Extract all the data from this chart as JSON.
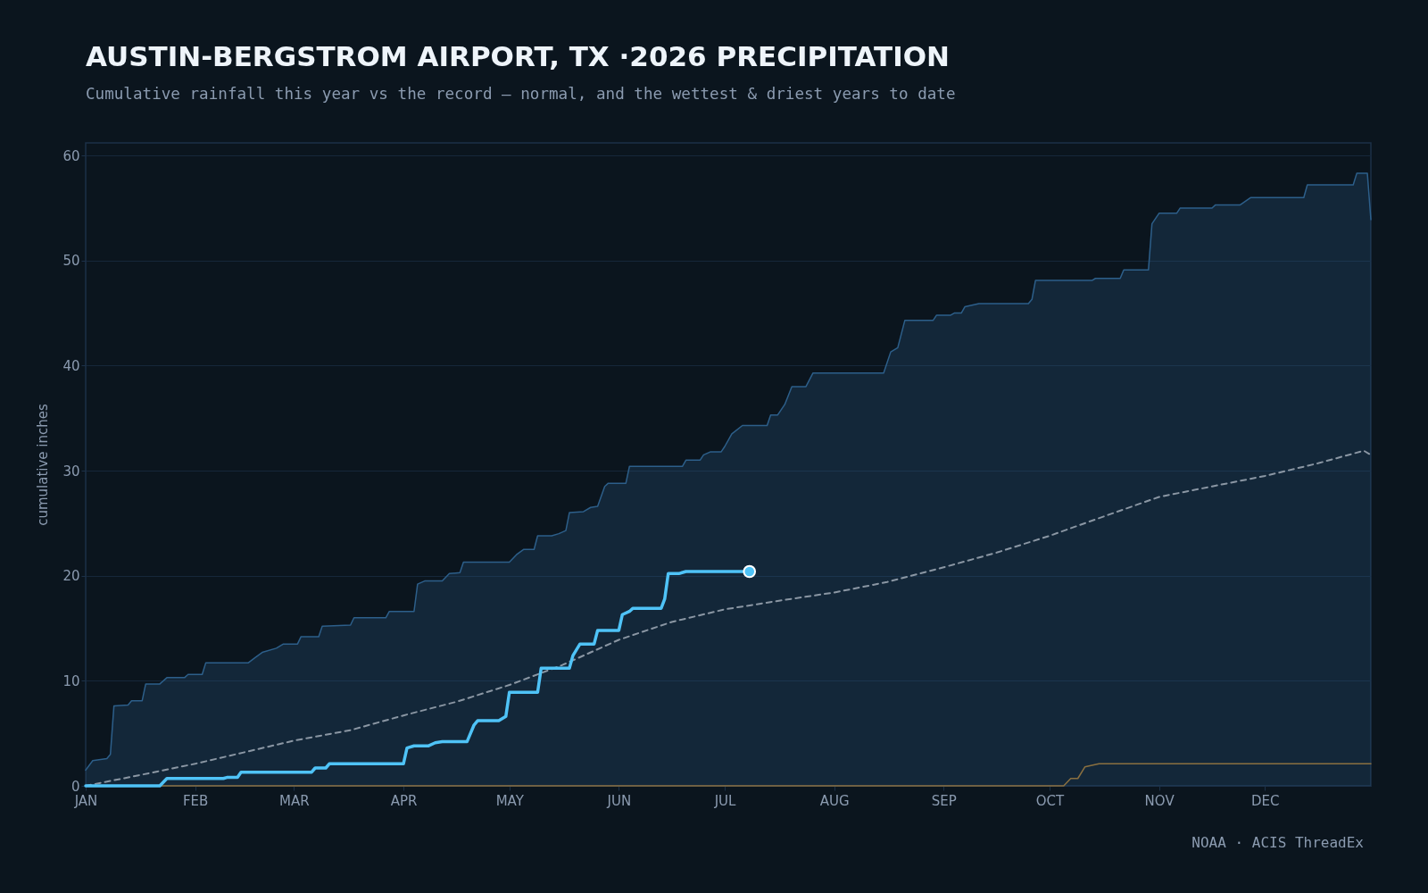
{
  "chart_data": {
    "type": "line",
    "title": "AUSTIN-BERGSTROM AIRPORT, TX ·2026 PRECIPITATION",
    "subtitle": "Cumulative rainfall this year vs the record — normal, and the wettest & driest years to date",
    "ylabel": "cumulative inches",
    "annotations": [
      "NOAA · ACIS ThreadEx"
    ],
    "xlim": [
      "--01-01",
      "--12-31"
    ],
    "xticks": [
      {
        "value": "--01-01",
        "label": "JAN"
      },
      {
        "value": "--02-01",
        "label": "FEB"
      },
      {
        "value": "--03-01",
        "label": "MAR"
      },
      {
        "value": "--04-01",
        "label": "APR"
      },
      {
        "value": "--05-01",
        "label": "MAY"
      },
      {
        "value": "--06-01",
        "label": "JUN"
      },
      {
        "value": "--07-01",
        "label": "JUL"
      },
      {
        "value": "--08-01",
        "label": "AUG"
      },
      {
        "value": "--09-01",
        "label": "SEP"
      },
      {
        "value": "--10-01",
        "label": "OCT"
      },
      {
        "value": "--11-01",
        "label": "NOV"
      },
      {
        "value": "--12-01",
        "label": "DEC"
      }
    ],
    "ylim": [
      0,
      61.2
    ],
    "yticks": [
      0,
      10,
      20,
      30,
      40,
      50,
      60
    ],
    "grid": "y",
    "series": [
      {
        "type": "area",
        "color": "#2d5f8a",
        "x": [
          "--01-01",
          "--01-03",
          "--01-07",
          "--01-08",
          "--01-09",
          "--01-13",
          "--01-14",
          "--01-17",
          "--01-18",
          "--01-22",
          "--01-24",
          "--01-29",
          "--01-30",
          "--02-03",
          "--02-04",
          "--02-16",
          "--02-18",
          "--02-20",
          "--02-24",
          "--02-26",
          "--03-02",
          "--03-03",
          "--03-08",
          "--03-09",
          "--03-17",
          "--03-18",
          "--03-27",
          "--03-28",
          "--04-04",
          "--04-05",
          "--04-07",
          "--04-12",
          "--04-14",
          "--04-17",
          "--04-18",
          "--05-01",
          "--05-03",
          "--05-05",
          "--05-08",
          "--05-09",
          "--05-13",
          "--05-15",
          "--05-17",
          "--05-18",
          "--05-22",
          "--05-24",
          "--05-26",
          "--05-28",
          "--05-29",
          "--06-03",
          "--06-04",
          "--06-19",
          "--06-20",
          "--06-24",
          "--06-25",
          "--06-27",
          "--06-30",
          "--07-01",
          "--07-03",
          "--07-06",
          "--07-13",
          "--07-14",
          "--07-16",
          "--07-18",
          "--07-20",
          "--07-24",
          "--07-26",
          "--08-15",
          "--08-17",
          "--08-19",
          "--08-21",
          "--08-29",
          "--08-30",
          "--09-03",
          "--09-04",
          "--09-06",
          "--09-07",
          "--09-11",
          "--09-25",
          "--09-26",
          "--09-27",
          "--10-13",
          "--10-14",
          "--10-21",
          "--10-22",
          "--10-29",
          "--10-30",
          "--11-01",
          "--11-06",
          "--11-07",
          "--11-16",
          "--11-17",
          "--11-24",
          "--11-27",
          "--12-12",
          "--12-13",
          "--12-26",
          "--12-27",
          "--12-30",
          "--12-31"
        ],
        "values": [
          1.5,
          2.4,
          2.6,
          3.0,
          7.6,
          7.7,
          8.1,
          8.1,
          9.7,
          9.7,
          10.3,
          10.3,
          10.6,
          10.6,
          11.7,
          11.7,
          12.2,
          12.7,
          13.1,
          13.5,
          13.5,
          14.2,
          14.2,
          15.2,
          15.3,
          16.0,
          16.0,
          16.6,
          16.6,
          19.2,
          19.5,
          19.5,
          20.2,
          20.3,
          21.3,
          21.3,
          22.0,
          22.5,
          22.5,
          23.8,
          23.8,
          24.0,
          24.3,
          26.0,
          26.1,
          26.5,
          26.6,
          28.5,
          28.8,
          28.8,
          30.4,
          30.4,
          31.0,
          31.0,
          31.5,
          31.8,
          31.8,
          32.3,
          33.5,
          34.3,
          34.3,
          35.3,
          35.3,
          36.3,
          38.0,
          38.0,
          39.3,
          39.3,
          41.3,
          41.7,
          44.3,
          44.3,
          44.8,
          44.8,
          45.0,
          45.0,
          45.6,
          45.9,
          45.9,
          46.3,
          48.1,
          48.1,
          48.3,
          48.3,
          49.1,
          49.1,
          53.5,
          54.5,
          54.5,
          55.0,
          55.0,
          55.3,
          55.3,
          56.0,
          56.0,
          57.2,
          57.2,
          58.3,
          58.3,
          53.9
        ]
      },
      {
        "color": "#8a96a3",
        "line_style": "dashed",
        "x": [
          "--01-01",
          "--01-16",
          "--02-01",
          "--02-15",
          "--03-01",
          "--03-17",
          "--04-01",
          "--04-16",
          "--05-01",
          "--05-16",
          "--06-01",
          "--06-16",
          "--07-01",
          "--07-16",
          "--08-01",
          "--08-16",
          "--09-01",
          "--09-16",
          "--10-01",
          "--10-16",
          "--11-01",
          "--11-16",
          "--12-01",
          "--12-16",
          "--12-29",
          "--12-31"
        ],
        "values": [
          0,
          1.0,
          2.1,
          3.2,
          4.3,
          5.3,
          6.7,
          8.0,
          9.6,
          11.5,
          13.9,
          15.6,
          16.8,
          17.6,
          18.4,
          19.4,
          20.8,
          22.2,
          23.8,
          25.6,
          27.5,
          28.5,
          29.5,
          30.7,
          31.9,
          31.5
        ]
      },
      {
        "color": "#8a7040",
        "x": [
          "--01-01",
          "--10-05",
          "--10-07",
          "--10-09",
          "--10-11",
          "--10-15",
          "--12-31"
        ],
        "values": [
          0,
          0,
          0.7,
          0.7,
          1.8,
          2.1,
          2.1
        ]
      },
      {
        "color": "#4fc3f7",
        "x": [
          "--01-01",
          "--01-22",
          "--01-24",
          "--02-09",
          "--02-10",
          "--02-13",
          "--02-14",
          "--03-06",
          "--03-07",
          "--03-10",
          "--03-11",
          "--04-01",
          "--04-02",
          "--04-04",
          "--04-08",
          "--04-10",
          "--04-12",
          "--04-19",
          "--04-21",
          "--04-22",
          "--04-28",
          "--04-30",
          "--05-01",
          "--05-09",
          "--05-10",
          "--05-18",
          "--05-19",
          "--05-21",
          "--05-25",
          "--05-26",
          "--06-01",
          "--06-02",
          "--06-04",
          "--06-05",
          "--06-13",
          "--06-14",
          "--06-15",
          "--06-18",
          "--06-20",
          "--07-08"
        ],
        "values": [
          0,
          0,
          0.7,
          0.7,
          0.8,
          0.8,
          1.3,
          1.3,
          1.7,
          1.7,
          2.1,
          2.1,
          3.6,
          3.8,
          3.8,
          4.1,
          4.2,
          4.2,
          5.8,
          6.2,
          6.2,
          6.6,
          8.9,
          8.9,
          11.2,
          11.2,
          12.4,
          13.5,
          13.5,
          14.8,
          14.8,
          16.3,
          16.6,
          16.9,
          16.9,
          17.8,
          20.2,
          20.2,
          20.4,
          20.4
        ]
      },
      {
        "type": "scatter",
        "color": "#4fc3f7",
        "marker": "circle",
        "x": [
          "--07-08"
        ],
        "values": [
          20.4
        ]
      }
    ]
  }
}
